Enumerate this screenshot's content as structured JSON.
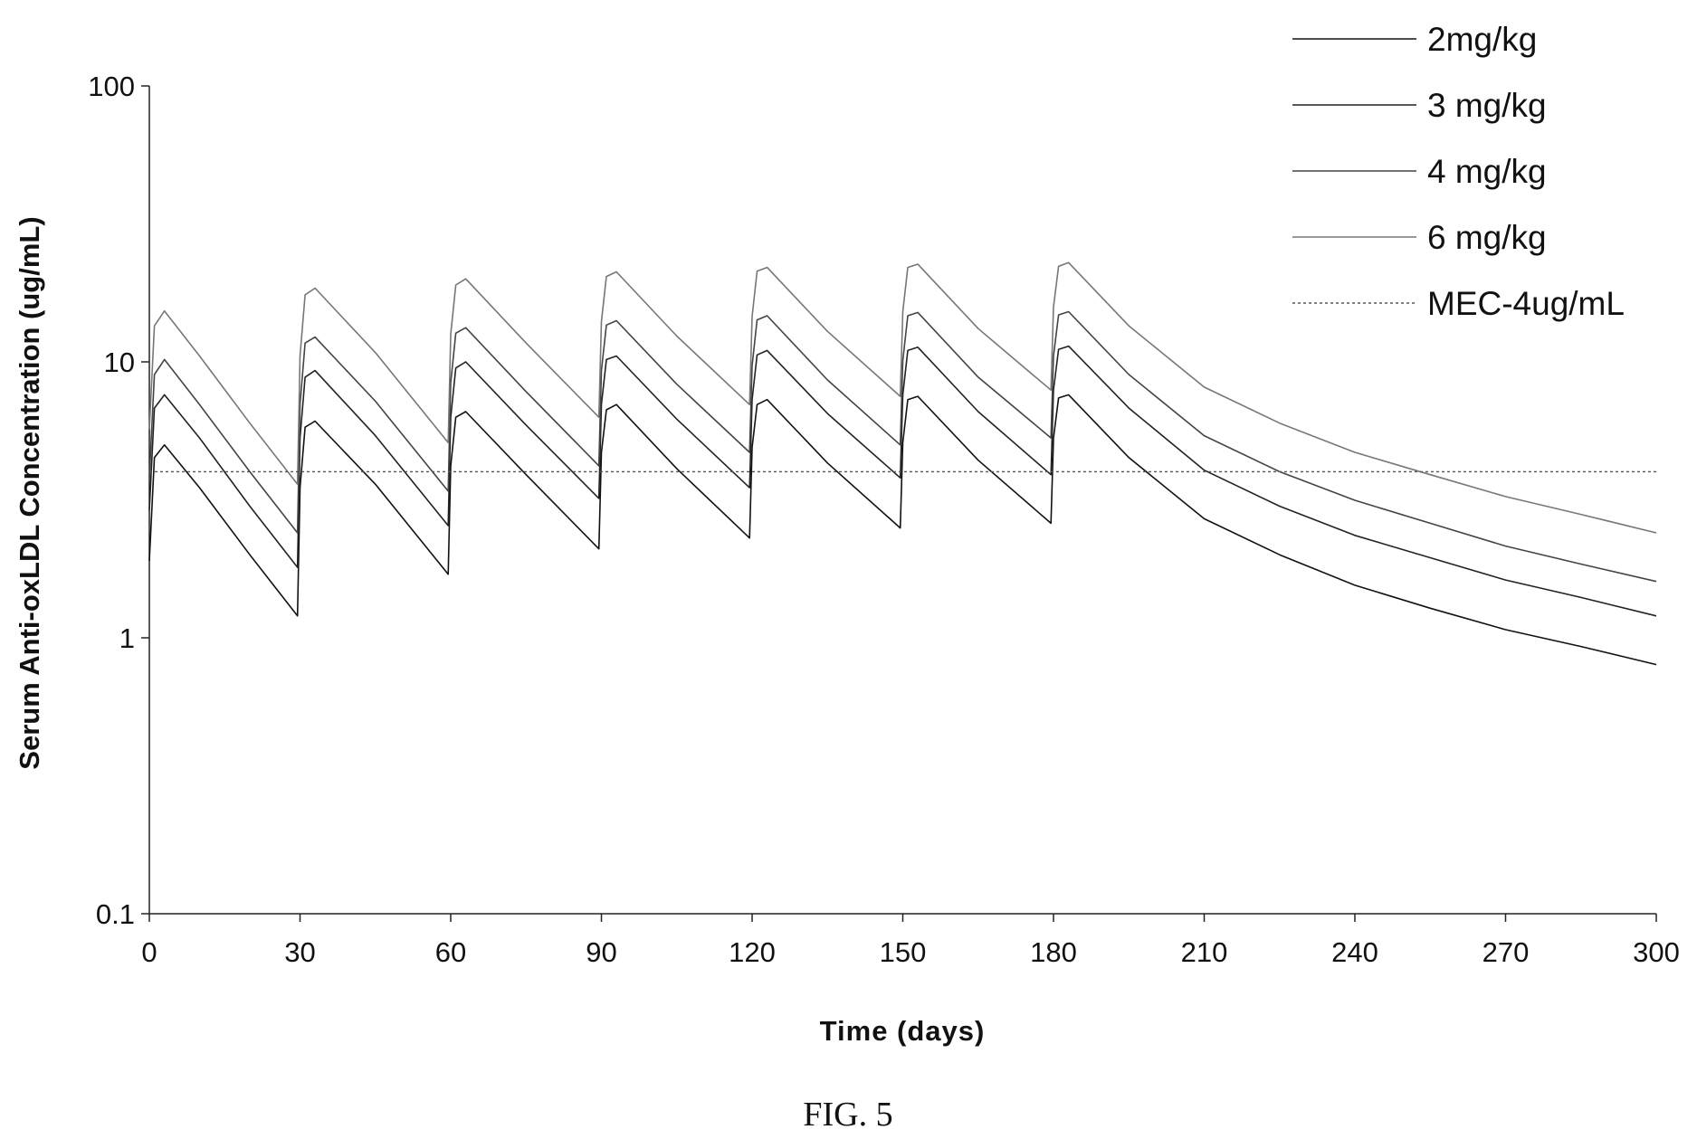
{
  "figure_caption": "FIG. 5",
  "chart_data": {
    "type": "line",
    "title": "",
    "xlabel": "Time (days)",
    "ylabel": "Serum Anti-oxLDL Concentration (ug/mL)",
    "xlim": [
      0,
      300
    ],
    "ylim": [
      0.1,
      100
    ],
    "yscale": "log",
    "x_ticks": [
      0,
      30,
      60,
      90,
      120,
      150,
      180,
      210,
      240,
      270,
      300
    ],
    "y_ticks": [
      0.1,
      1,
      10,
      100
    ],
    "y_tick_labels": [
      "0.1",
      "1",
      "10",
      "100"
    ],
    "grid": false,
    "legend_position": "top-right",
    "dosing_days": [
      0,
      30,
      60,
      90,
      120,
      150,
      180
    ],
    "series": [
      {
        "name": "2mg/kg",
        "color": "#111111",
        "dash": "solid",
        "points": [
          [
            0,
            1.9
          ],
          [
            1,
            4.5
          ],
          [
            3,
            5.0
          ],
          [
            10,
            3.5
          ],
          [
            20,
            2.0
          ],
          [
            29.5,
            1.2
          ],
          [
            30,
            3.5
          ],
          [
            31,
            5.8
          ],
          [
            33,
            6.1
          ],
          [
            45,
            3.6
          ],
          [
            59.5,
            1.7
          ],
          [
            60,
            4.2
          ],
          [
            61,
            6.3
          ],
          [
            63,
            6.6
          ],
          [
            75,
            3.9
          ],
          [
            89.5,
            2.1
          ],
          [
            90,
            4.7
          ],
          [
            91,
            6.7
          ],
          [
            93,
            7.0
          ],
          [
            105,
            4.1
          ],
          [
            119.5,
            2.3
          ],
          [
            120,
            4.9
          ],
          [
            121,
            7.0
          ],
          [
            123,
            7.3
          ],
          [
            135,
            4.3
          ],
          [
            149.5,
            2.5
          ],
          [
            150,
            5.1
          ],
          [
            151,
            7.3
          ],
          [
            153,
            7.5
          ],
          [
            165,
            4.4
          ],
          [
            179.5,
            2.6
          ],
          [
            180,
            5.3
          ],
          [
            181,
            7.4
          ],
          [
            183,
            7.6
          ],
          [
            195,
            4.5
          ],
          [
            210,
            2.7
          ],
          [
            225,
            2.0
          ],
          [
            240,
            1.55
          ],
          [
            255,
            1.28
          ],
          [
            270,
            1.07
          ],
          [
            285,
            0.93
          ],
          [
            300,
            0.8
          ]
        ]
      },
      {
        "name": "3 mg/kg",
        "color": "#222222",
        "dash": "solid",
        "points": [
          [
            0,
            2.9
          ],
          [
            1,
            6.8
          ],
          [
            3,
            7.6
          ],
          [
            10,
            5.3
          ],
          [
            20,
            3.0
          ],
          [
            29.5,
            1.8
          ],
          [
            30,
            5.3
          ],
          [
            31,
            8.8
          ],
          [
            33,
            9.3
          ],
          [
            45,
            5.4
          ],
          [
            59.5,
            2.55
          ],
          [
            60,
            6.3
          ],
          [
            61,
            9.5
          ],
          [
            63,
            10.0
          ],
          [
            75,
            5.9
          ],
          [
            89.5,
            3.2
          ],
          [
            90,
            7.0
          ],
          [
            91,
            10.2
          ],
          [
            93,
            10.5
          ],
          [
            105,
            6.2
          ],
          [
            119.5,
            3.5
          ],
          [
            120,
            7.3
          ],
          [
            121,
            10.6
          ],
          [
            123,
            11.0
          ],
          [
            135,
            6.5
          ],
          [
            149.5,
            3.8
          ],
          [
            150,
            7.6
          ],
          [
            151,
            11.0
          ],
          [
            153,
            11.3
          ],
          [
            165,
            6.6
          ],
          [
            179.5,
            3.9
          ],
          [
            180,
            7.9
          ],
          [
            181,
            11.1
          ],
          [
            183,
            11.4
          ],
          [
            195,
            6.8
          ],
          [
            210,
            4.05
          ],
          [
            225,
            3.0
          ],
          [
            240,
            2.35
          ],
          [
            255,
            1.95
          ],
          [
            270,
            1.62
          ],
          [
            285,
            1.4
          ],
          [
            300,
            1.2
          ]
        ]
      },
      {
        "name": "4 mg/kg",
        "color": "#444444",
        "dash": "solid",
        "points": [
          [
            0,
            3.8
          ],
          [
            1,
            9.0
          ],
          [
            3,
            10.2
          ],
          [
            10,
            7.0
          ],
          [
            20,
            4.0
          ],
          [
            29.5,
            2.4
          ],
          [
            30,
            7.0
          ],
          [
            31,
            11.7
          ],
          [
            33,
            12.3
          ],
          [
            45,
            7.2
          ],
          [
            59.5,
            3.4
          ],
          [
            60,
            8.4
          ],
          [
            61,
            12.7
          ],
          [
            63,
            13.3
          ],
          [
            75,
            7.8
          ],
          [
            89.5,
            4.2
          ],
          [
            90,
            9.3
          ],
          [
            91,
            13.6
          ],
          [
            93,
            14.1
          ],
          [
            105,
            8.3
          ],
          [
            119.5,
            4.7
          ],
          [
            120,
            9.7
          ],
          [
            121,
            14.2
          ],
          [
            123,
            14.7
          ],
          [
            135,
            8.6
          ],
          [
            149.5,
            5.0
          ],
          [
            150,
            10.1
          ],
          [
            151,
            14.7
          ],
          [
            153,
            15.1
          ],
          [
            165,
            8.8
          ],
          [
            179.5,
            5.3
          ],
          [
            180,
            10.5
          ],
          [
            181,
            14.8
          ],
          [
            183,
            15.2
          ],
          [
            195,
            9.0
          ],
          [
            210,
            5.4
          ],
          [
            225,
            4.0
          ],
          [
            240,
            3.15
          ],
          [
            255,
            2.6
          ],
          [
            270,
            2.15
          ],
          [
            285,
            1.85
          ],
          [
            300,
            1.6
          ]
        ]
      },
      {
        "name": "6 mg/kg",
        "color": "#777777",
        "dash": "solid",
        "points": [
          [
            0,
            5.7
          ],
          [
            1,
            13.5
          ],
          [
            3,
            15.3
          ],
          [
            10,
            10.5
          ],
          [
            20,
            6.0
          ],
          [
            29.5,
            3.6
          ],
          [
            30,
            10.5
          ],
          [
            31,
            17.5
          ],
          [
            33,
            18.5
          ],
          [
            45,
            10.8
          ],
          [
            59.5,
            5.1
          ],
          [
            60,
            12.6
          ],
          [
            61,
            19.0
          ],
          [
            63,
            20.0
          ],
          [
            75,
            11.7
          ],
          [
            89.5,
            6.3
          ],
          [
            90,
            14.0
          ],
          [
            91,
            20.4
          ],
          [
            93,
            21.2
          ],
          [
            105,
            12.4
          ],
          [
            119.5,
            7.0
          ],
          [
            120,
            14.6
          ],
          [
            121,
            21.3
          ],
          [
            123,
            22.0
          ],
          [
            135,
            12.9
          ],
          [
            149.5,
            7.5
          ],
          [
            150,
            15.2
          ],
          [
            151,
            22.0
          ],
          [
            153,
            22.6
          ],
          [
            165,
            13.2
          ],
          [
            179.5,
            7.9
          ],
          [
            180,
            15.8
          ],
          [
            181,
            22.2
          ],
          [
            183,
            22.9
          ],
          [
            195,
            13.5
          ],
          [
            210,
            8.1
          ],
          [
            225,
            6.0
          ],
          [
            240,
            4.7
          ],
          [
            255,
            3.9
          ],
          [
            270,
            3.25
          ],
          [
            285,
            2.8
          ],
          [
            300,
            2.4
          ]
        ]
      },
      {
        "name": "MEC-4ug/mL",
        "color": "#555555",
        "dash": "dotted",
        "points": [
          [
            0,
            4
          ],
          [
            300,
            4
          ]
        ]
      }
    ]
  }
}
